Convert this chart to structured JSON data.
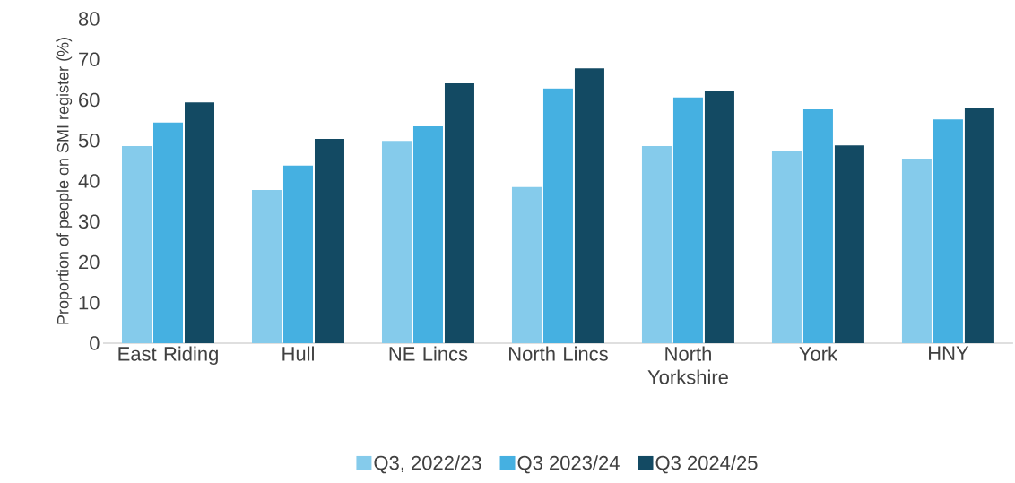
{
  "chart_data": {
    "type": "bar",
    "ylabel": "Proportion of people on SMI register (%)",
    "categories": [
      "East Riding",
      "Hull",
      "NE Lincs",
      "North Lincs",
      "North Yorkshire",
      "York",
      "HNY"
    ],
    "series": [
      {
        "name": "Q3, 2022/23",
        "color": "#85cbeb",
        "values": [
          48.6,
          37.8,
          49.9,
          38.5,
          48.6,
          47.5,
          45.5
        ]
      },
      {
        "name": "Q3 2023/24",
        "color": "#45b0e1",
        "values": [
          54.4,
          43.8,
          53.5,
          62.8,
          60.6,
          57.7,
          55.2
        ]
      },
      {
        "name": "Q3 2024/25",
        "color": "#134a63",
        "values": [
          59.4,
          50.4,
          64.1,
          67.8,
          62.3,
          48.8,
          58.1
        ]
      }
    ],
    "ylim": [
      0,
      80
    ],
    "yticks": [
      0,
      10,
      20,
      30,
      40,
      50,
      60,
      70,
      80
    ],
    "grid": false,
    "legend": "bottom"
  }
}
